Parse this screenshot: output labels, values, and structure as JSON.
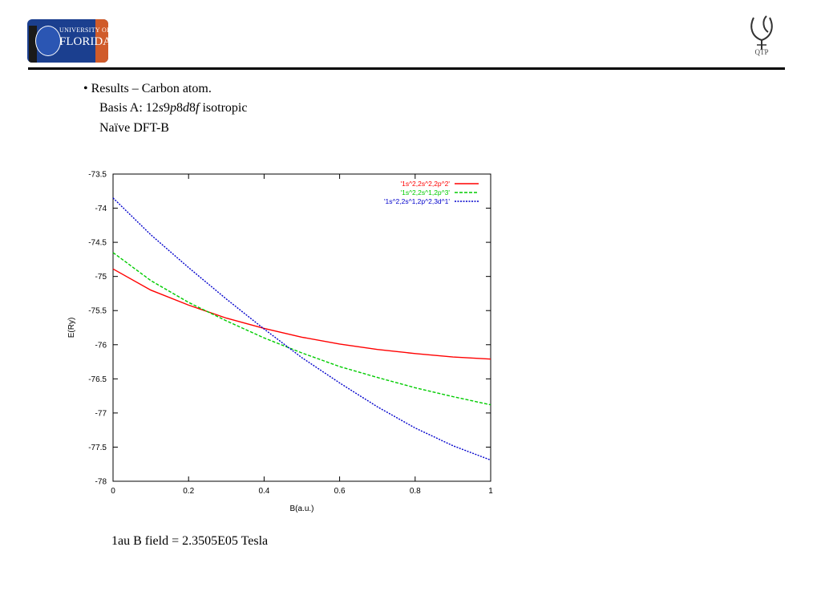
{
  "header": {
    "logo_left": {
      "name": "university-of-florida-logo",
      "line1": "UNIVERSITY OF",
      "line2": "FLORIDA"
    },
    "logo_right": {
      "name": "qtp-logo",
      "caption": "QTP"
    }
  },
  "content": {
    "bullet": "• Results – Carbon atom.",
    "basis_prefix": "Basis A: 12",
    "basis_s": "s",
    "basis_9": "9",
    "basis_p": "p",
    "basis_8a": "8",
    "basis_d": "d",
    "basis_8b": "8",
    "basis_f": "f",
    "basis_suffix": " isotropic",
    "method": "Naïve DFT-B",
    "note": "1au B field = 2.3505E05 Tesla"
  },
  "chart_data": {
    "type": "line",
    "xlabel": "B(a.u.)",
    "ylabel": "E(Ry)",
    "xlim": [
      0,
      1
    ],
    "ylim": [
      -78,
      -73.5
    ],
    "xticks": [
      0,
      0.2,
      0.4,
      0.6,
      0.8,
      1
    ],
    "xtick_labels": [
      "0",
      "0.2",
      "0.4",
      "0.6",
      "0.8",
      "1"
    ],
    "yticks": [
      -73.5,
      -74,
      -74.5,
      -75,
      -75.5,
      -76,
      -76.5,
      -77,
      -77.5,
      -78
    ],
    "ytick_labels": [
      "-73.5",
      "-74",
      "-74.5",
      "-75",
      "-75.5",
      "-76",
      "-76.5",
      "-77",
      "-77.5",
      "-78"
    ],
    "grid": false,
    "legend_position": "top-right",
    "x": [
      0,
      0.1,
      0.2,
      0.3,
      0.4,
      0.5,
      0.6,
      0.7,
      0.8,
      0.9,
      1.0
    ],
    "series": [
      {
        "name": "'1s^2,2s^2,2p^2'",
        "color": "#ff0000",
        "dash": "solid",
        "values": [
          -74.89,
          -75.2,
          -75.42,
          -75.61,
          -75.76,
          -75.89,
          -75.99,
          -76.07,
          -76.13,
          -76.18,
          -76.21
        ]
      },
      {
        "name": "'1s^2,2s^1,2p^3'",
        "color": "#00cc00",
        "dash": "dashed",
        "values": [
          -74.65,
          -75.06,
          -75.38,
          -75.65,
          -75.9,
          -76.12,
          -76.32,
          -76.48,
          -76.63,
          -76.76,
          -76.88
        ]
      },
      {
        "name": "'1s^2,2s^1,2p^2,3d^1'",
        "color": "#0000cc",
        "dash": "dotted",
        "values": [
          -73.85,
          -74.39,
          -74.87,
          -75.33,
          -75.77,
          -76.19,
          -76.56,
          -76.91,
          -77.22,
          -77.48,
          -77.69
        ]
      }
    ]
  }
}
